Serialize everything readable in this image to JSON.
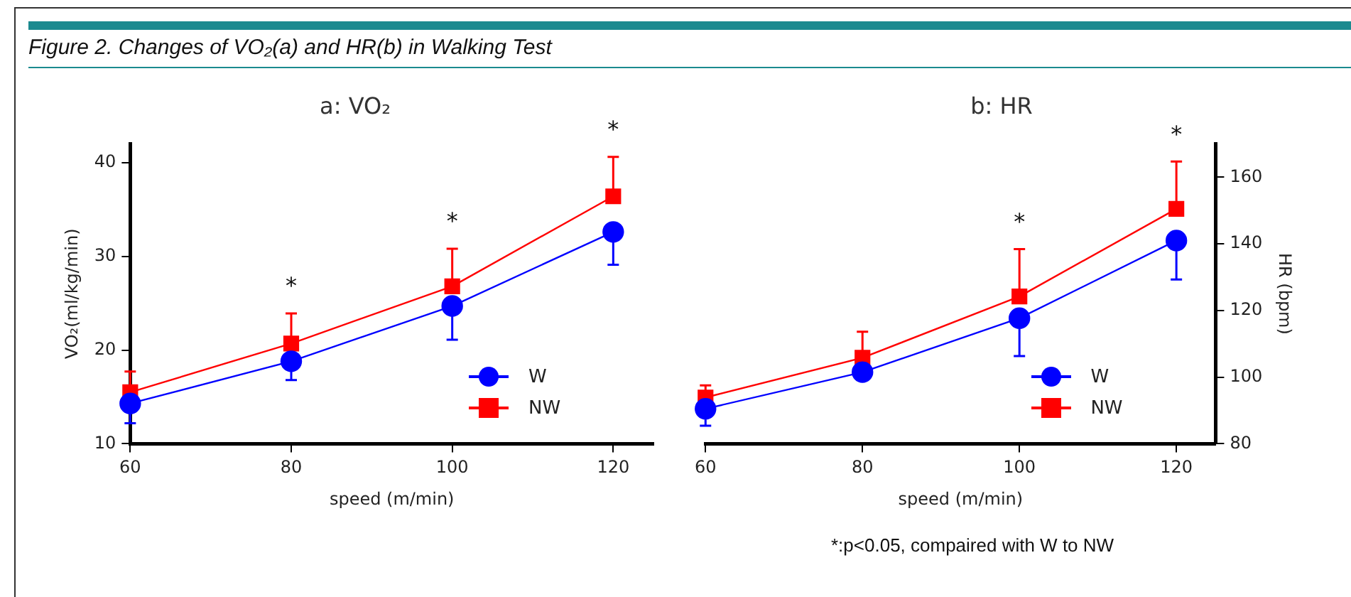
{
  "chart_data": [
    {
      "type": "line",
      "title": "a: VO₂",
      "xlabel": "speed (m/min)",
      "ylabel": "VO₂(ml/kg/min)",
      "x": [
        60,
        80,
        100,
        120
      ],
      "xlim": [
        60,
        125
      ],
      "xticks": [
        60,
        80,
        100,
        120
      ],
      "ylim": [
        10,
        42
      ],
      "yticks": [
        10,
        20,
        30,
        40
      ],
      "legend": "bottom right",
      "grid": false,
      "series": [
        {
          "name": "W",
          "color": "#0000ff",
          "marker": "circle",
          "values": [
            14.3,
            18.8,
            24.7,
            32.6
          ],
          "errors": [
            [
              12.2,
              14.3
            ],
            [
              16.8,
              18.8
            ],
            [
              21.1,
              24.7
            ],
            [
              29.1,
              32.6
            ]
          ]
        },
        {
          "name": "NW",
          "color": "#ff0000",
          "marker": "square",
          "values": [
            15.5,
            20.7,
            26.8,
            36.4
          ],
          "errors": [
            [
              15.5,
              17.7
            ],
            [
              20.7,
              23.9
            ],
            [
              26.8,
              30.8
            ],
            [
              36.4,
              40.6
            ]
          ]
        }
      ],
      "annotations": [
        "Figure 2. Changes of VO₂(a) and HR(b) in Walking Test",
        {
          "text": "*",
          "x": 80,
          "y": 23.9
        },
        {
          "text": "*",
          "x": 100,
          "y": 30.8
        },
        {
          "text": "*",
          "x": 120,
          "y": 40.6
        }
      ]
    },
    {
      "type": "line",
      "title": "b: HR",
      "xlabel": "speed (m/min)",
      "ylabel": "HR (bpm)",
      "x": [
        60,
        80,
        100,
        120
      ],
      "xlim": [
        60,
        125
      ],
      "xticks": [
        60,
        80,
        100,
        120
      ],
      "ylim": [
        80,
        170
      ],
      "yticks": [
        80,
        100,
        120,
        140,
        160
      ],
      "legend": "bottom right",
      "grid": false,
      "series": [
        {
          "name": "W",
          "color": "#0000ff",
          "marker": "circle",
          "values": [
            90.5,
            101.5,
            117.7,
            141
          ],
          "errors": [
            [
              85.4,
              90.5
            ],
            null,
            [
              106.3,
              117.7
            ],
            [
              129.3,
              141
            ]
          ]
        },
        {
          "name": "NW",
          "color": "#ff0000",
          "marker": "square",
          "values": [
            93.9,
            105.8,
            124.2,
            150.5
          ],
          "errors": [
            [
              93.9,
              97.5
            ],
            [
              105.8,
              113.6
            ],
            [
              124.2,
              138.4
            ],
            [
              150.5,
              164.7
            ]
          ]
        }
      ],
      "annotations": [
        {
          "text": "*",
          "x": 100,
          "y": 138.4
        },
        {
          "text": "*",
          "x": 120,
          "y": 164.7
        },
        "*:p<0.05, compaired with W to NW"
      ]
    }
  ]
}
